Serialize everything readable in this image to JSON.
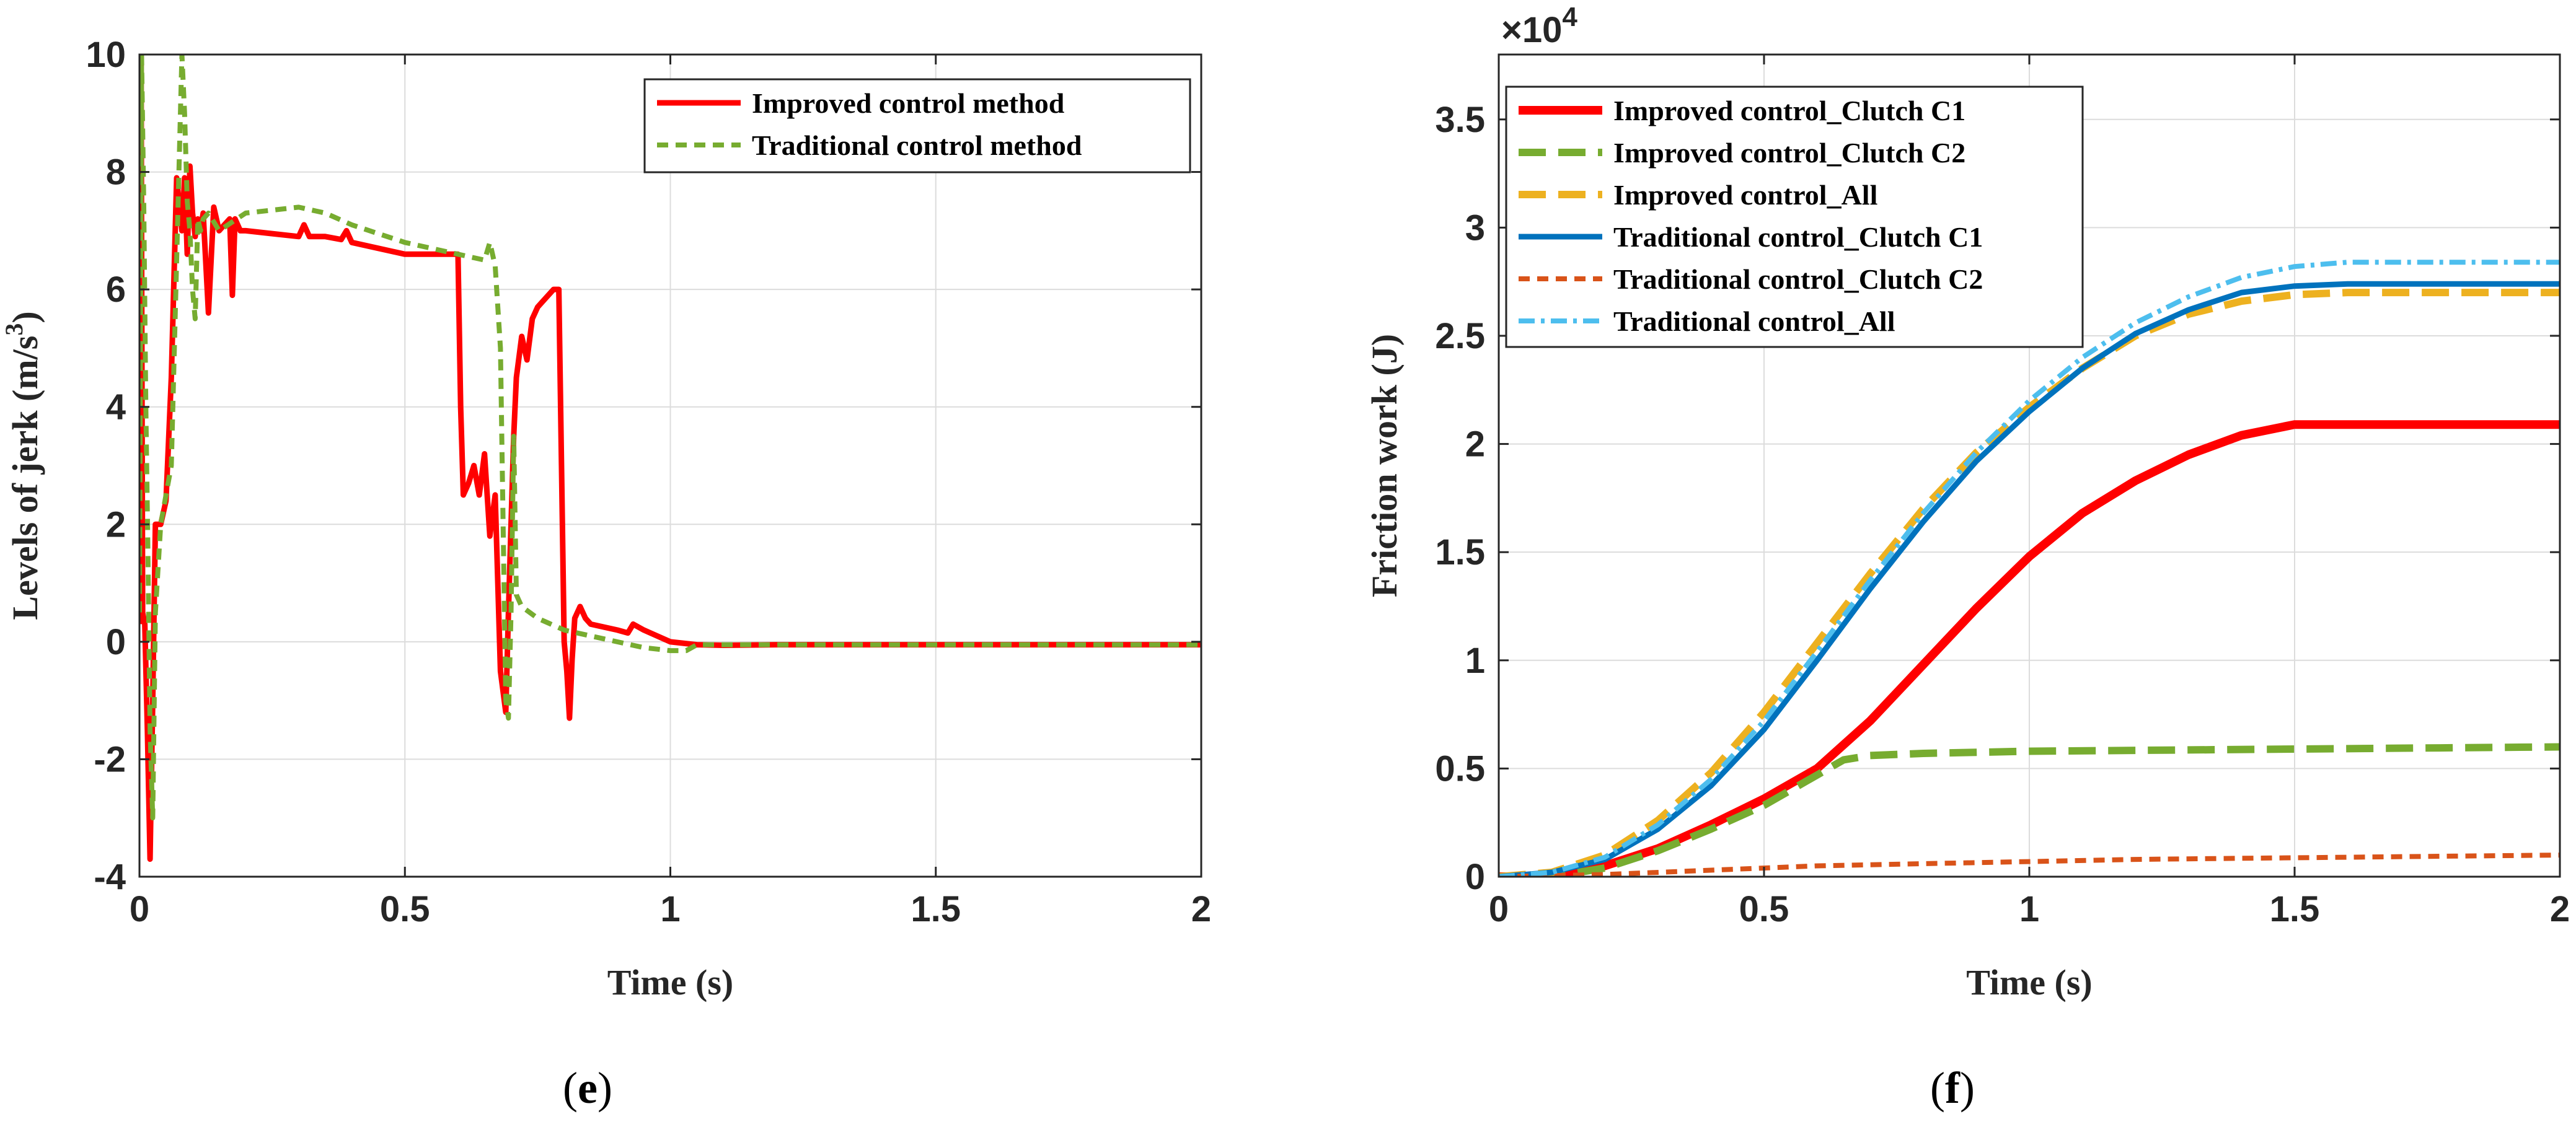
{
  "chart_data": [
    {
      "type": "line",
      "panel_label": "e",
      "xlabel": "Time (s)",
      "ylabel": "Levels of jerk",
      "ylabel_unit": "(m/s",
      "ylabel_unit_sup": "3",
      "ylabel_unit_close": ")",
      "xlim": [
        0,
        2
      ],
      "ylim": [
        -4,
        10
      ],
      "xticks": [
        0,
        0.5,
        1,
        1.5,
        2
      ],
      "xtick_labels": [
        "0",
        "0.5",
        "1",
        "1.5",
        "2"
      ],
      "yticks": [
        -4,
        -2,
        0,
        2,
        4,
        6,
        8,
        10
      ],
      "ytick_labels": [
        "-4",
        "-2",
        "0",
        "2",
        "4",
        "6",
        "8",
        "10"
      ],
      "grid": true,
      "legend_position": "top-right",
      "series": [
        {
          "name": "Improved control method",
          "color": "#ff0000",
          "dash": "solid",
          "x": [
            0,
            0.003,
            0.006,
            0.01,
            0.015,
            0.02,
            0.025,
            0.03,
            0.04,
            0.05,
            0.06,
            0.07,
            0.08,
            0.085,
            0.09,
            0.095,
            0.1,
            0.105,
            0.11,
            0.115,
            0.12,
            0.13,
            0.14,
            0.145,
            0.15,
            0.16,
            0.17,
            0.175,
            0.18,
            0.19,
            0.2,
            0.25,
            0.3,
            0.31,
            0.32,
            0.35,
            0.38,
            0.39,
            0.4,
            0.45,
            0.5,
            0.55,
            0.6,
            0.605,
            0.61,
            0.62,
            0.63,
            0.64,
            0.65,
            0.66,
            0.67,
            0.68,
            0.69,
            0.695,
            0.7,
            0.705,
            0.71,
            0.72,
            0.73,
            0.74,
            0.75,
            0.76,
            0.77,
            0.78,
            0.79,
            0.795,
            0.8,
            0.805,
            0.81,
            0.815,
            0.82,
            0.83,
            0.84,
            0.85,
            0.9,
            0.92,
            0.93,
            0.95,
            1.0,
            1.05,
            1.1,
            1.2,
            1.5,
            2.0
          ],
          "y": [
            0.3,
            10,
            0.5,
            0.3,
            -1.5,
            -3.7,
            -1.0,
            2.0,
            2.0,
            2.4,
            4.5,
            7.9,
            7.0,
            7.9,
            6.6,
            8.1,
            7.3,
            6.9,
            7.2,
            7.0,
            7.3,
            5.6,
            7.4,
            7.2,
            7.0,
            7.1,
            7.2,
            5.9,
            7.2,
            7.0,
            7.0,
            6.95,
            6.9,
            7.1,
            6.9,
            6.9,
            6.85,
            7.0,
            6.8,
            6.7,
            6.6,
            6.6,
            6.6,
            4.0,
            2.5,
            2.7,
            3.0,
            2.5,
            3.2,
            1.8,
            2.5,
            -0.5,
            -1.2,
            0.5,
            2.0,
            3.5,
            4.5,
            5.2,
            4.8,
            5.5,
            5.7,
            5.8,
            5.9,
            6.0,
            6.0,
            3.0,
            0.0,
            -0.5,
            -1.3,
            -0.3,
            0.4,
            0.6,
            0.4,
            0.3,
            0.2,
            0.15,
            0.3,
            0.2,
            0.0,
            -0.05,
            -0.06,
            -0.05,
            -0.05,
            -0.05
          ]
        },
        {
          "name": "Traditional control method",
          "color": "#77ac30",
          "dash": "dashed",
          "x": [
            0,
            0.004,
            0.008,
            0.012,
            0.016,
            0.02,
            0.025,
            0.03,
            0.04,
            0.05,
            0.06,
            0.07,
            0.08,
            0.085,
            0.09,
            0.095,
            0.1,
            0.105,
            0.11,
            0.115,
            0.12,
            0.13,
            0.15,
            0.2,
            0.25,
            0.3,
            0.35,
            0.4,
            0.45,
            0.5,
            0.55,
            0.6,
            0.65,
            0.66,
            0.67,
            0.68,
            0.685,
            0.69,
            0.695,
            0.7,
            0.705,
            0.71,
            0.72,
            0.75,
            0.8,
            0.85,
            0.9,
            0.95,
            1.0,
            1.03,
            1.05,
            1.1,
            1.2,
            1.5,
            2.0
          ],
          "y": [
            0.5,
            10,
            7.5,
            4.0,
            1.5,
            -1.5,
            -3.0,
            0.5,
            2.0,
            2.5,
            3.0,
            6.5,
            10,
            9.0,
            7.5,
            7.0,
            6.0,
            5.5,
            7.2,
            7.0,
            7.2,
            7.3,
            7.0,
            7.3,
            7.35,
            7.4,
            7.3,
            7.1,
            6.95,
            6.8,
            6.7,
            6.6,
            6.5,
            6.8,
            6.4,
            5.0,
            2.0,
            -1.0,
            -1.3,
            0.5,
            3.5,
            0.8,
            0.6,
            0.4,
            0.2,
            0.1,
            0.0,
            -0.1,
            -0.15,
            -0.15,
            -0.05,
            -0.05,
            -0.05,
            -0.05,
            -0.05
          ]
        }
      ]
    },
    {
      "type": "line",
      "panel_label": "f",
      "xlabel": "Time (s)",
      "ylabel": "Friction work (J)",
      "exponent_base": "×10",
      "exponent_power": "4",
      "xlim": [
        0,
        2
      ],
      "ylim": [
        0,
        3.8
      ],
      "xticks": [
        0,
        0.5,
        1,
        1.5,
        2
      ],
      "xtick_labels": [
        "0",
        "0.5",
        "1",
        "1.5",
        "2"
      ],
      "yticks": [
        0,
        0.5,
        1,
        1.5,
        2,
        2.5,
        3,
        3.5
      ],
      "ytick_labels": [
        "0",
        "0.5",
        "1",
        "1.5",
        "2",
        "2.5",
        "3",
        "3.5"
      ],
      "grid": true,
      "legend_position": "top-left",
      "series": [
        {
          "name": "Improved control_Clutch C1",
          "color": "#ff0000",
          "dash": "solid-thick",
          "x": [
            0,
            0.1,
            0.2,
            0.3,
            0.4,
            0.5,
            0.6,
            0.7,
            0.8,
            0.9,
            1.0,
            1.1,
            1.2,
            1.3,
            1.4,
            1.5,
            1.6,
            1.8,
            2.0
          ],
          "y": [
            0,
            0.0,
            0.05,
            0.13,
            0.24,
            0.36,
            0.5,
            0.72,
            0.98,
            1.24,
            1.48,
            1.68,
            1.83,
            1.95,
            2.04,
            2.09,
            2.09,
            2.09,
            2.09
          ]
        },
        {
          "name": "Improved control_Clutch C2",
          "color": "#77ac30",
          "dash": "dashed-long",
          "x": [
            0,
            0.1,
            0.2,
            0.3,
            0.4,
            0.5,
            0.6,
            0.65,
            0.7,
            0.8,
            1.0,
            1.5,
            2.0
          ],
          "y": [
            0,
            0.0,
            0.04,
            0.12,
            0.22,
            0.33,
            0.47,
            0.54,
            0.56,
            0.57,
            0.58,
            0.59,
            0.6
          ]
        },
        {
          "name": "Improved control_All",
          "color": "#edb120",
          "dash": "dashed-long",
          "x": [
            0,
            0.1,
            0.2,
            0.3,
            0.4,
            0.5,
            0.6,
            0.7,
            0.8,
            0.9,
            1.0,
            1.1,
            1.2,
            1.3,
            1.4,
            1.5,
            1.6,
            1.8,
            2.0
          ],
          "y": [
            0,
            0.02,
            0.1,
            0.26,
            0.48,
            0.76,
            1.08,
            1.4,
            1.7,
            1.96,
            2.17,
            2.35,
            2.5,
            2.6,
            2.66,
            2.69,
            2.7,
            2.7,
            2.7
          ]
        },
        {
          "name": "Traditional control_Clutch C1",
          "color": "#0072bd",
          "dash": "solid",
          "x": [
            0,
            0.1,
            0.2,
            0.3,
            0.4,
            0.5,
            0.6,
            0.7,
            0.8,
            0.9,
            1.0,
            1.1,
            1.2,
            1.3,
            1.4,
            1.5,
            1.6,
            1.8,
            2.0
          ],
          "y": [
            0,
            0.02,
            0.08,
            0.22,
            0.42,
            0.68,
            1.0,
            1.33,
            1.64,
            1.92,
            2.15,
            2.35,
            2.51,
            2.62,
            2.7,
            2.73,
            2.74,
            2.74,
            2.74
          ]
        },
        {
          "name": "Traditional control_Clutch C2",
          "color": "#d95319",
          "dash": "dashed",
          "x": [
            0,
            0.2,
            0.4,
            0.6,
            0.8,
            1.0,
            1.2,
            1.4,
            1.6,
            1.8,
            2.0
          ],
          "y": [
            0,
            0.01,
            0.03,
            0.05,
            0.06,
            0.07,
            0.08,
            0.085,
            0.09,
            0.095,
            0.1
          ]
        },
        {
          "name": "Traditional control_All",
          "color": "#4dbeee",
          "dash": "dashdot",
          "x": [
            0,
            0.1,
            0.2,
            0.3,
            0.4,
            0.5,
            0.6,
            0.7,
            0.8,
            0.9,
            1.0,
            1.1,
            1.2,
            1.3,
            1.4,
            1.5,
            1.6,
            1.8,
            2.0
          ],
          "y": [
            0,
            0.02,
            0.09,
            0.24,
            0.45,
            0.72,
            1.04,
            1.37,
            1.68,
            1.96,
            2.2,
            2.4,
            2.56,
            2.68,
            2.77,
            2.82,
            2.84,
            2.84,
            2.84
          ]
        }
      ]
    }
  ]
}
